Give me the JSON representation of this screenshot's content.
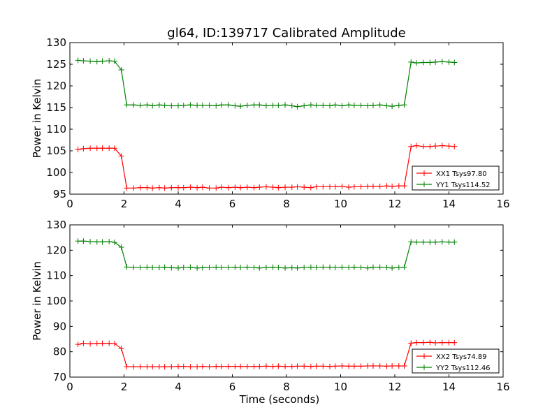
{
  "title": "gl64, ID:139717 Calibrated Amplitude",
  "chart_data": [
    {
      "type": "line",
      "title": "gl64, ID:139717 Calibrated Amplitude",
      "xlabel": "",
      "ylabel": "Power in Kelvin",
      "xlim": [
        0,
        16
      ],
      "ylim": [
        95,
        130
      ],
      "xticks": [
        0,
        2,
        4,
        6,
        8,
        10,
        12,
        14,
        16
      ],
      "yticks": [
        95,
        100,
        105,
        110,
        115,
        120,
        125,
        130
      ],
      "legend_position": "lower-right",
      "series": [
        {
          "name": "XX1 Tsys97.80",
          "color": "#ff0000",
          "x": [
            0.3,
            0.5,
            0.75,
            1.0,
            1.2,
            1.45,
            1.65,
            1.9,
            2.1,
            2.35,
            2.6,
            2.85,
            3.05,
            3.3,
            3.5,
            3.75,
            4.0,
            4.2,
            4.45,
            4.7,
            4.9,
            5.15,
            5.4,
            5.6,
            5.85,
            6.1,
            6.3,
            6.55,
            6.8,
            7.0,
            7.25,
            7.5,
            7.7,
            7.95,
            8.2,
            8.4,
            8.65,
            8.9,
            9.1,
            9.35,
            9.6,
            9.8,
            10.05,
            10.3,
            10.5,
            10.75,
            11.0,
            11.2,
            11.45,
            11.7,
            11.9,
            12.15,
            12.35,
            12.6,
            12.8,
            13.05,
            13.3,
            13.5,
            13.75,
            14.0,
            14.2
          ],
          "values": [
            105.3,
            105.5,
            105.6,
            105.6,
            105.6,
            105.6,
            105.6,
            103.8,
            96.4,
            96.4,
            96.5,
            96.5,
            96.4,
            96.5,
            96.4,
            96.5,
            96.5,
            96.5,
            96.6,
            96.5,
            96.6,
            96.4,
            96.4,
            96.6,
            96.5,
            96.6,
            96.5,
            96.6,
            96.5,
            96.6,
            96.7,
            96.6,
            96.5,
            96.6,
            96.6,
            96.7,
            96.6,
            96.5,
            96.7,
            96.7,
            96.7,
            96.7,
            96.8,
            96.6,
            96.7,
            96.7,
            96.8,
            96.8,
            96.8,
            96.9,
            96.8,
            96.9,
            96.9,
            106.0,
            106.2,
            106.0,
            106.0,
            106.1,
            106.2,
            106.1,
            106.0
          ]
        },
        {
          "name": "YY1 Tsys114.52",
          "color": "#008000",
          "x": [
            0.3,
            0.5,
            0.75,
            1.0,
            1.2,
            1.45,
            1.65,
            1.9,
            2.1,
            2.35,
            2.6,
            2.85,
            3.05,
            3.3,
            3.5,
            3.75,
            4.0,
            4.2,
            4.45,
            4.7,
            4.9,
            5.15,
            5.4,
            5.6,
            5.85,
            6.1,
            6.3,
            6.55,
            6.8,
            7.0,
            7.25,
            7.5,
            7.7,
            7.95,
            8.2,
            8.4,
            8.65,
            8.9,
            9.1,
            9.35,
            9.6,
            9.8,
            10.05,
            10.3,
            10.5,
            10.75,
            11.0,
            11.2,
            11.45,
            11.7,
            11.9,
            12.15,
            12.35,
            12.6,
            12.8,
            13.05,
            13.3,
            13.5,
            13.75,
            14.0,
            14.2
          ],
          "values": [
            125.9,
            125.8,
            125.7,
            125.6,
            125.7,
            125.8,
            125.7,
            123.7,
            115.6,
            115.6,
            115.5,
            115.6,
            115.4,
            115.6,
            115.5,
            115.4,
            115.4,
            115.5,
            115.6,
            115.5,
            115.5,
            115.5,
            115.4,
            115.6,
            115.6,
            115.4,
            115.3,
            115.5,
            115.6,
            115.6,
            115.4,
            115.5,
            115.5,
            115.6,
            115.4,
            115.2,
            115.4,
            115.6,
            115.5,
            115.5,
            115.4,
            115.6,
            115.4,
            115.6,
            115.5,
            115.5,
            115.4,
            115.5,
            115.6,
            115.4,
            115.3,
            115.5,
            115.6,
            125.5,
            125.3,
            125.4,
            125.4,
            125.5,
            125.6,
            125.5,
            125.4
          ]
        }
      ]
    },
    {
      "type": "line",
      "title": "",
      "xlabel": "Time (seconds)",
      "ylabel": "Power in Kelvin",
      "xlim": [
        0,
        16
      ],
      "ylim": [
        70,
        130
      ],
      "xticks": [
        0,
        2,
        4,
        6,
        8,
        10,
        12,
        14,
        16
      ],
      "yticks": [
        70,
        80,
        90,
        100,
        110,
        120,
        130
      ],
      "legend_position": "lower-right",
      "series": [
        {
          "name": "XX2 Tsys74.89",
          "color": "#ff0000",
          "x": [
            0.3,
            0.5,
            0.75,
            1.0,
            1.2,
            1.45,
            1.65,
            1.9,
            2.1,
            2.35,
            2.6,
            2.85,
            3.05,
            3.3,
            3.5,
            3.75,
            4.0,
            4.2,
            4.45,
            4.7,
            4.9,
            5.15,
            5.4,
            5.6,
            5.85,
            6.1,
            6.3,
            6.55,
            6.8,
            7.0,
            7.25,
            7.5,
            7.7,
            7.95,
            8.2,
            8.4,
            8.65,
            8.9,
            9.1,
            9.35,
            9.6,
            9.8,
            10.05,
            10.3,
            10.5,
            10.75,
            11.0,
            11.2,
            11.45,
            11.7,
            11.9,
            12.15,
            12.35,
            12.6,
            12.8,
            13.05,
            13.3,
            13.5,
            13.75,
            14.0,
            14.2
          ],
          "values": [
            82.9,
            83.3,
            83.1,
            83.3,
            83.3,
            83.3,
            83.2,
            81.3,
            74.1,
            74.1,
            74.1,
            74.1,
            74.1,
            74.1,
            74.1,
            74.1,
            74.2,
            74.2,
            74.1,
            74.1,
            74.2,
            74.1,
            74.2,
            74.2,
            74.2,
            74.2,
            74.2,
            74.2,
            74.2,
            74.2,
            74.3,
            74.2,
            74.3,
            74.2,
            74.2,
            74.3,
            74.3,
            74.2,
            74.3,
            74.3,
            74.2,
            74.3,
            74.4,
            74.3,
            74.3,
            74.3,
            74.4,
            74.4,
            74.4,
            74.3,
            74.4,
            74.4,
            74.4,
            83.4,
            83.6,
            83.6,
            83.7,
            83.5,
            83.6,
            83.6,
            83.6
          ]
        },
        {
          "name": "YY2 Tsys112.46",
          "color": "#008000",
          "x": [
            0.3,
            0.5,
            0.75,
            1.0,
            1.2,
            1.45,
            1.65,
            1.9,
            2.1,
            2.35,
            2.6,
            2.85,
            3.05,
            3.3,
            3.5,
            3.75,
            4.0,
            4.2,
            4.45,
            4.7,
            4.9,
            5.15,
            5.4,
            5.6,
            5.85,
            6.1,
            6.3,
            6.55,
            6.8,
            7.0,
            7.25,
            7.5,
            7.7,
            7.95,
            8.2,
            8.4,
            8.65,
            8.9,
            9.1,
            9.35,
            9.6,
            9.8,
            10.05,
            10.3,
            10.5,
            10.75,
            11.0,
            11.2,
            11.45,
            11.7,
            11.9,
            12.15,
            12.35,
            12.6,
            12.8,
            13.05,
            13.3,
            13.5,
            13.75,
            14.0,
            14.2
          ],
          "values": [
            123.6,
            123.6,
            123.4,
            123.3,
            123.3,
            123.4,
            123.1,
            121.2,
            113.4,
            113.2,
            113.2,
            113.3,
            113.2,
            113.2,
            113.3,
            113.1,
            113.0,
            113.2,
            113.3,
            113.0,
            113.1,
            113.2,
            113.3,
            113.2,
            113.2,
            113.3,
            113.2,
            113.3,
            113.2,
            113.0,
            113.2,
            113.3,
            113.2,
            113.0,
            113.1,
            113.0,
            113.2,
            113.3,
            113.2,
            113.3,
            113.3,
            113.2,
            113.3,
            113.2,
            113.3,
            113.2,
            113.0,
            113.3,
            113.3,
            113.2,
            113.0,
            113.2,
            113.3,
            123.3,
            123.2,
            123.2,
            123.2,
            123.2,
            123.3,
            123.2,
            123.2
          ]
        }
      ]
    }
  ]
}
